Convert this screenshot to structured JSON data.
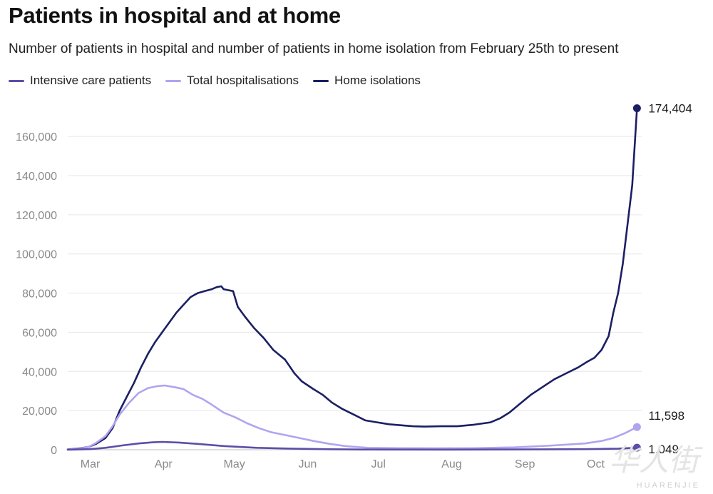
{
  "title": "Patients in hospital and at home",
  "subtitle": "Number of patients in hospital and number of patients in home isolation from February 25th to present",
  "legend": [
    {
      "label": "Intensive care patients",
      "color": "#5b4fa8"
    },
    {
      "label": "Total hospitalisations",
      "color": "#b0a4f0"
    },
    {
      "label": "Home isolations",
      "color": "#1b1f63"
    }
  ],
  "watermark": {
    "glyph": "华人街",
    "text": "HUARENJIE"
  },
  "chart_data": {
    "type": "line",
    "ylim": [
      0,
      175000
    ],
    "yticks": [
      0,
      20000,
      40000,
      60000,
      80000,
      100000,
      120000,
      140000,
      160000
    ],
    "ytick_labels": [
      "0",
      "20,000",
      "40,000",
      "60,000",
      "80,000",
      "100,000",
      "120,000",
      "140,000",
      "160,000"
    ],
    "xlim": [
      "2020-02-25",
      "2020-10-25"
    ],
    "xticks": [
      "2020-03-01",
      "2020-04-01",
      "2020-05-01",
      "2020-06-01",
      "2020-07-01",
      "2020-08-01",
      "2020-09-01",
      "2020-10-01"
    ],
    "xtick_labels": [
      "Mar",
      "Apr",
      "May",
      "Jun",
      "Jul",
      "Aug",
      "Sep",
      "Oct"
    ],
    "grid": true,
    "legend_position": "top-left",
    "series": [
      {
        "name": "Home isolations",
        "color": "#1b1f63",
        "end_label": "174,404",
        "points": [
          [
            "2020-02-25",
            200
          ],
          [
            "2020-03-01",
            700
          ],
          [
            "2020-03-05",
            1500
          ],
          [
            "2020-03-08",
            3000
          ],
          [
            "2020-03-12",
            6000
          ],
          [
            "2020-03-15",
            11000
          ],
          [
            "2020-03-18",
            20000
          ],
          [
            "2020-03-21",
            27000
          ],
          [
            "2020-03-24",
            34000
          ],
          [
            "2020-03-27",
            42000
          ],
          [
            "2020-03-30",
            49000
          ],
          [
            "2020-04-02",
            55000
          ],
          [
            "2020-04-05",
            60000
          ],
          [
            "2020-04-08",
            65000
          ],
          [
            "2020-04-11",
            70000
          ],
          [
            "2020-04-14",
            74000
          ],
          [
            "2020-04-17",
            78000
          ],
          [
            "2020-04-20",
            80000
          ],
          [
            "2020-04-23",
            81000
          ],
          [
            "2020-04-26",
            82000
          ],
          [
            "2020-04-28",
            83000
          ],
          [
            "2020-04-30",
            83500
          ],
          [
            "2020-05-01",
            82000
          ],
          [
            "2020-05-03",
            81500
          ],
          [
            "2020-05-05",
            81000
          ],
          [
            "2020-05-07",
            73000
          ],
          [
            "2020-05-10",
            68000
          ],
          [
            "2020-05-14",
            62000
          ],
          [
            "2020-05-18",
            57000
          ],
          [
            "2020-05-22",
            51000
          ],
          [
            "2020-05-27",
            46000
          ],
          [
            "2020-05-31",
            39000
          ],
          [
            "2020-06-03",
            35000
          ],
          [
            "2020-06-08",
            31000
          ],
          [
            "2020-06-12",
            28000
          ],
          [
            "2020-06-16",
            24000
          ],
          [
            "2020-06-20",
            21000
          ],
          [
            "2020-06-25",
            18000
          ],
          [
            "2020-06-30",
            15000
          ],
          [
            "2020-07-05",
            14000
          ],
          [
            "2020-07-10",
            13000
          ],
          [
            "2020-07-15",
            12500
          ],
          [
            "2020-07-20",
            12000
          ],
          [
            "2020-07-25",
            11800
          ],
          [
            "2020-08-01",
            12000
          ],
          [
            "2020-08-08",
            12000
          ],
          [
            "2020-08-15",
            12800
          ],
          [
            "2020-08-22",
            14000
          ],
          [
            "2020-08-26",
            16000
          ],
          [
            "2020-08-30",
            19000
          ],
          [
            "2020-09-03",
            23000
          ],
          [
            "2020-09-08",
            28000
          ],
          [
            "2020-09-13",
            32000
          ],
          [
            "2020-09-18",
            36000
          ],
          [
            "2020-09-23",
            39000
          ],
          [
            "2020-09-28",
            42000
          ],
          [
            "2020-10-02",
            45000
          ],
          [
            "2020-10-05",
            47000
          ],
          [
            "2020-10-08",
            51000
          ],
          [
            "2020-10-11",
            58000
          ],
          [
            "2020-10-13",
            70000
          ],
          [
            "2020-10-15",
            80000
          ],
          [
            "2020-10-17",
            95000
          ],
          [
            "2020-10-19",
            115000
          ],
          [
            "2020-10-21",
            135000
          ],
          [
            "2020-10-23",
            174404
          ]
        ]
      },
      {
        "name": "Total hospitalisations",
        "color": "#b0a4f0",
        "end_label": "11,598",
        "points": [
          [
            "2020-02-25",
            100
          ],
          [
            "2020-03-01",
            500
          ],
          [
            "2020-03-05",
            1500
          ],
          [
            "2020-03-08",
            3500
          ],
          [
            "2020-03-12",
            7000
          ],
          [
            "2020-03-15",
            12000
          ],
          [
            "2020-03-18",
            18000
          ],
          [
            "2020-03-22",
            24000
          ],
          [
            "2020-03-26",
            29000
          ],
          [
            "2020-03-30",
            31500
          ],
          [
            "2020-04-03",
            32500
          ],
          [
            "2020-04-06",
            32800
          ],
          [
            "2020-04-10",
            32000
          ],
          [
            "2020-04-14",
            31000
          ],
          [
            "2020-04-18",
            28000
          ],
          [
            "2020-04-22",
            26000
          ],
          [
            "2020-04-26",
            23000
          ],
          [
            "2020-05-01",
            19000
          ],
          [
            "2020-05-06",
            16500
          ],
          [
            "2020-05-11",
            13500
          ],
          [
            "2020-05-16",
            11000
          ],
          [
            "2020-05-21",
            9000
          ],
          [
            "2020-05-27",
            7500
          ],
          [
            "2020-06-02",
            6000
          ],
          [
            "2020-06-08",
            4500
          ],
          [
            "2020-06-15",
            3000
          ],
          [
            "2020-06-22",
            1800
          ],
          [
            "2020-07-01",
            1000
          ],
          [
            "2020-07-15",
            800
          ],
          [
            "2020-08-01",
            750
          ],
          [
            "2020-08-15",
            800
          ],
          [
            "2020-09-01",
            1200
          ],
          [
            "2020-09-15",
            2000
          ],
          [
            "2020-10-01",
            3200
          ],
          [
            "2020-10-08",
            4500
          ],
          [
            "2020-10-13",
            6000
          ],
          [
            "2020-10-18",
            8500
          ],
          [
            "2020-10-23",
            11598
          ]
        ]
      },
      {
        "name": "Intensive care patients",
        "color": "#5b4fa8",
        "end_label": "1,049",
        "points": [
          [
            "2020-02-25",
            50
          ],
          [
            "2020-03-05",
            300
          ],
          [
            "2020-03-12",
            1000
          ],
          [
            "2020-03-19",
            2200
          ],
          [
            "2020-03-26",
            3200
          ],
          [
            "2020-04-01",
            3800
          ],
          [
            "2020-04-05",
            4000
          ],
          [
            "2020-04-12",
            3700
          ],
          [
            "2020-04-20",
            3000
          ],
          [
            "2020-05-01",
            1900
          ],
          [
            "2020-05-15",
            1000
          ],
          [
            "2020-06-01",
            500
          ],
          [
            "2020-06-15",
            250
          ],
          [
            "2020-07-01",
            120
          ],
          [
            "2020-08-01",
            60
          ],
          [
            "2020-09-01",
            150
          ],
          [
            "2020-10-01",
            300
          ],
          [
            "2020-10-15",
            600
          ],
          [
            "2020-10-23",
            1049
          ]
        ]
      }
    ]
  }
}
